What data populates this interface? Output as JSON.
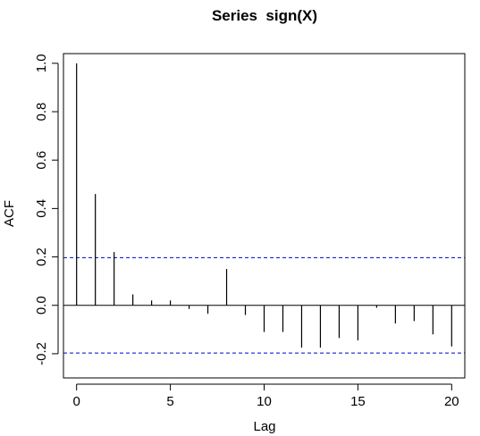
{
  "chart_data": {
    "type": "bar",
    "title": "Series  sign(X)",
    "xlabel": "Lag",
    "ylabel": "ACF",
    "xlim": [
      -0.7,
      20.7
    ],
    "ylim": [
      -0.3,
      1.04
    ],
    "x_ticks": [
      0,
      5,
      10,
      15,
      20
    ],
    "y_ticks": [
      -0.2,
      0.0,
      0.2,
      0.4,
      0.6,
      0.8,
      1.0
    ],
    "y_tick_labels": [
      "-0.2",
      "0.0",
      "0.2",
      "0.4",
      "0.6",
      "0.8",
      "1.0"
    ],
    "lags": [
      0,
      1,
      2,
      3,
      4,
      5,
      6,
      7,
      8,
      9,
      10,
      11,
      12,
      13,
      14,
      15,
      16,
      17,
      18,
      19,
      20
    ],
    "values": [
      1.0,
      0.46,
      0.22,
      0.045,
      0.02,
      0.02,
      -0.015,
      -0.035,
      0.15,
      -0.04,
      -0.11,
      -0.11,
      -0.175,
      -0.175,
      -0.135,
      -0.145,
      -0.01,
      -0.075,
      -0.065,
      -0.12,
      -0.17
    ],
    "confidence_bounds": [
      0.197,
      -0.197
    ],
    "zero_line": true,
    "grid": false,
    "colors": {
      "bars": "#000000",
      "confidence": "#0000cc",
      "axes": "#000000"
    }
  }
}
